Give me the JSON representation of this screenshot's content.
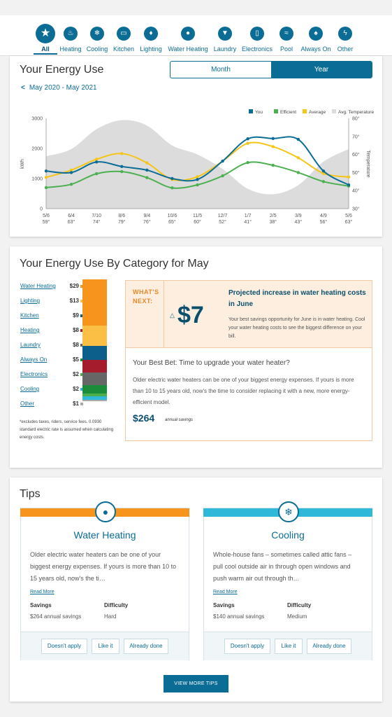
{
  "categories": [
    {
      "label": "All",
      "icon": "star-icon",
      "glyph": "★"
    },
    {
      "label": "Heating",
      "icon": "flame-icon",
      "glyph": "♨"
    },
    {
      "label": "Cooling",
      "icon": "snowflake-icon",
      "glyph": "❄"
    },
    {
      "label": "Kitchen",
      "icon": "microwave-icon",
      "glyph": "▭"
    },
    {
      "label": "Lighting",
      "icon": "lightbulb-icon",
      "glyph": "♦"
    },
    {
      "label": "Water Heating",
      "icon": "water-drop-icon",
      "glyph": "●"
    },
    {
      "label": "Laundry",
      "icon": "shirt-icon",
      "glyph": "▼"
    },
    {
      "label": "Electronics",
      "icon": "phone-icon",
      "glyph": "▯"
    },
    {
      "label": "Pool",
      "icon": "pool-waves-icon",
      "glyph": "≈"
    },
    {
      "label": "Always On",
      "icon": "plug-icon",
      "glyph": "♠"
    },
    {
      "label": "Other",
      "icon": "bolt-icon",
      "glyph": "ϟ"
    }
  ],
  "energy_use": {
    "title": "Your Energy Use",
    "toggle": {
      "month": "Month",
      "year": "Year"
    },
    "date_range": "May 2020 - May 2021"
  },
  "chart_data": {
    "type": "line",
    "legend": [
      "You",
      "Efficient",
      "Average",
      "Avg. Temperature"
    ],
    "legend_position": "top-right",
    "ylabel": "kWh",
    "y2label": "Temperature",
    "ylim": [
      0,
      3000
    ],
    "y_ticks": [
      "0",
      "1000",
      "2000",
      "3000"
    ],
    "y2lim": [
      30,
      80
    ],
    "y2_ticks": [
      "30°",
      "40°",
      "50°",
      "60°",
      "70°",
      "80°"
    ],
    "categories": [
      "5/6",
      "6/4",
      "7/10",
      "8/6",
      "9/4",
      "10/6",
      "11/5",
      "12/7",
      "1/7",
      "2/5",
      "3/9",
      "4/9",
      "5/6"
    ],
    "category_temps": [
      "59°",
      "63°",
      "74°",
      "79°",
      "76°",
      "65°",
      "60°",
      "52°",
      "41°",
      "38°",
      "43°",
      "56°",
      "63°"
    ],
    "series": [
      {
        "name": "You",
        "color": "#0b6d96",
        "values": [
          1250,
          1200,
          1550,
          1400,
          1280,
          1000,
          970,
          1580,
          2320,
          2330,
          2300,
          1250,
          790
        ]
      },
      {
        "name": "Efficient",
        "color": "#4caf50",
        "values": [
          700,
          810,
          1160,
          1230,
          1030,
          690,
          790,
          1090,
          1530,
          1440,
          1200,
          900,
          750
        ]
      },
      {
        "name": "Average",
        "color": "#f5c518",
        "values": [
          1040,
          1280,
          1640,
          1830,
          1520,
          970,
          1060,
          1580,
          2170,
          2060,
          1690,
          1170,
          1050
        ]
      },
      {
        "name": "Avg. Temperature",
        "type": "area",
        "color": "#dcdcdc",
        "values": [
          59,
          63,
          74,
          79,
          76,
          65,
          60,
          52,
          41,
          38,
          43,
          56,
          63
        ]
      }
    ]
  },
  "by_category": {
    "title": "Your Energy Use By Category for May",
    "items": [
      {
        "name": "Water Heating",
        "value": "$29",
        "color": "#f7941d",
        "amount": 29
      },
      {
        "name": "Lighting",
        "value": "$13",
        "color": "#fbbf45",
        "amount": 13
      },
      {
        "name": "Kitchen",
        "value": "$9",
        "color": "#0b5f8a",
        "amount": 9
      },
      {
        "name": "Heating",
        "value": "$8",
        "color": "#a51d2d",
        "amount": 8
      },
      {
        "name": "Laundry",
        "value": "$8",
        "color": "#666666",
        "amount": 8
      },
      {
        "name": "Always On",
        "value": "$5",
        "color": "#1a8c3a",
        "amount": 5
      },
      {
        "name": "Electronics",
        "value": "$2",
        "color": "#4cae4c",
        "amount": 2
      },
      {
        "name": "Cooling",
        "value": "$2",
        "color": "#2fb8d8",
        "amount": 2
      },
      {
        "name": "Other",
        "value": "$1",
        "color": "#aaaaaa",
        "amount": 1
      }
    ],
    "note": "*excludes taxes, riders, service fees. 0.0930 standard electric rate is assumed when calculating energy costs."
  },
  "whats_next": {
    "label_line1": "WHAT'S",
    "label_line2": "NEXT:",
    "amount": "$7",
    "headline": "Projected increase in water heating costs in June",
    "subtext": "Your best savings opportunity for June is in water heating. Cool your water heating costs to see the biggest difference on your bill.",
    "best_bet": "Your Best Bet: Time to upgrade your water heater?",
    "body": "Older electric water heaters can be one of your biggest energy expenses. If yours is more than 10 to 15 years old, now's the time to consider replacing it with a new, more energy-efficient model.",
    "savings": "$264",
    "savings_label": "annual savings"
  },
  "tips": {
    "title": "Tips",
    "cards": [
      {
        "title": "Water Heating",
        "icon": "water-drop-icon",
        "glyph": "●",
        "color": "#f7941d",
        "description": "Older electric water heaters can be one of your biggest energy expenses. If yours is more than 10 to 15 years old, now's the ti…",
        "read_more": "Read More",
        "savings_label": "Savings",
        "savings_value": "$264 annual savings",
        "difficulty_label": "Difficulty",
        "difficulty_value": "Hard",
        "buttons": [
          "Doesn't apply",
          "Like it",
          "Already done"
        ]
      },
      {
        "title": "Cooling",
        "icon": "snowflake-icon",
        "glyph": "❄",
        "color": "#2fb8d8",
        "description": "Whole-house fans – sometimes called attic fans – pull cool outside air in through open windows and push warm air out through th…",
        "read_more": "Read More",
        "savings_label": "Savings",
        "savings_value": "$140 annual savings",
        "difficulty_label": "Difficulty",
        "difficulty_value": "Medium",
        "buttons": [
          "Doesn't apply",
          "Like it",
          "Already done"
        ]
      }
    ],
    "view_more": "VIEW MORE TIPS"
  }
}
